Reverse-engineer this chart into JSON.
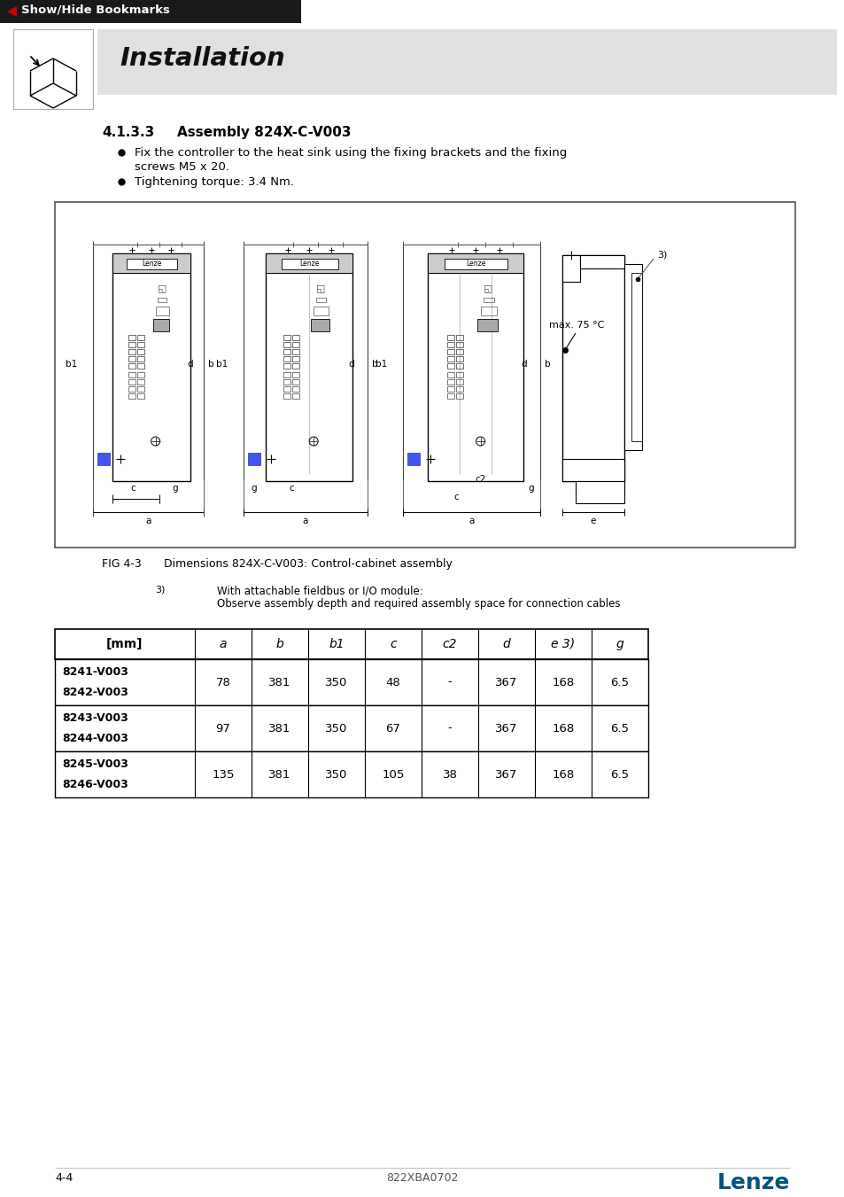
{
  "page_bg": "#ffffff",
  "header_bg": "#1a1a1a",
  "header_text": "Show/Hide Bookmarks",
  "header_text_color": "#ffffff",
  "header_arrow_color": "#cc0000",
  "section_header_bg": "#e0e0e0",
  "section_title": "Installation",
  "section_number": "4.1.3.3",
  "section_heading": "Assembly 824X-C-V003",
  "bullet1_line1": "Fix the controller to the heat sink using the fixing brackets and the fixing",
  "bullet1_line2": "screws M5 x 20.",
  "bullet2": "Tightening torque: 3.4 Nm.",
  "fig_caption_num": "FIG 4-3",
  "fig_caption_text": "Dimensions 824X-C-V003: Control-cabinet assembly",
  "footnote_num": "3)",
  "footnote_line1": "With attachable fieldbus or I/O module:",
  "footnote_line2": "Observe assembly depth and required assembly space for connection cables",
  "table_col_headers_display": [
    "[mm]",
    "a",
    "b",
    "b1",
    "c",
    "c2",
    "d",
    "e 3)",
    "g"
  ],
  "table_rows": [
    {
      "models": [
        "8241-V003",
        "8242-V003"
      ],
      "a": "78",
      "b": "381",
      "b1": "350",
      "c": "48",
      "c2": "-",
      "d": "367",
      "e": "168",
      "g": "6.5"
    },
    {
      "models": [
        "8243-V003",
        "8244-V003"
      ],
      "a": "97",
      "b": "381",
      "b1": "350",
      "c": "67",
      "c2": "-",
      "d": "367",
      "e": "168",
      "g": "6.5"
    },
    {
      "models": [
        "8245-V003",
        "8246-V003"
      ],
      "a": "135",
      "b": "381",
      "b1": "350",
      "c": "105",
      "c2": "38",
      "d": "367",
      "e": "168",
      "g": "6.5"
    }
  ],
  "footer_left": "4-4",
  "footer_center": "822XBA0702",
  "footer_right": "Lenze",
  "max_temp": "max. 75 °C",
  "footnote3_label": "3)"
}
